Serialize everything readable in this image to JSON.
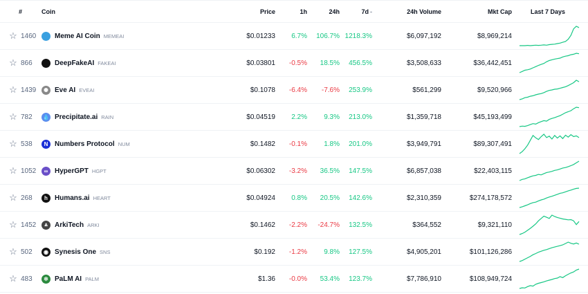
{
  "columns": {
    "rank": "#",
    "coin": "Coin",
    "price": "Price",
    "h1": "1h",
    "h24": "24h",
    "d7": "7d",
    "volume": "24h Volume",
    "mcap": "Mkt Cap",
    "last7": "Last 7 Days"
  },
  "colors": {
    "positive": "#16c784",
    "negative": "#ea3943",
    "star": "#616e85"
  },
  "rows": [
    {
      "star": "☆",
      "rank": "1460",
      "name": "Meme AI Coin",
      "symbol": "MEMEAI",
      "logo_char": "",
      "logo_color": "#3aa0e0",
      "price": "$0.01233",
      "h1": "6.7%",
      "h24": "106.7%",
      "d7": "1218.3%",
      "volume": "$6,097,192",
      "mcap": "$8,969,214",
      "trend": [
        2,
        2,
        2,
        2.1,
        2,
        2.1,
        2.2,
        2.1,
        2.2,
        2.3,
        2.2,
        2.4,
        2.5,
        2.6,
        2.8,
        3,
        3.3,
        3.6,
        4.5,
        6,
        8.5,
        9.5,
        9
      ]
    },
    {
      "star": "☆",
      "rank": "866",
      "name": "DeepFakeAI",
      "symbol": "FAKEAI",
      "logo_char": "",
      "logo_color": "#111111",
      "price": "$0.03801",
      "h1": "-0.5%",
      "h24": "18.5%",
      "d7": "456.5%",
      "volume": "$3,508,633",
      "mcap": "$36,442,451",
      "trend": [
        1,
        1.5,
        2,
        2.2,
        2.5,
        3,
        3.5,
        4,
        4.4,
        4.8,
        5.5,
        6,
        6.3,
        6.6,
        6.8,
        7,
        7.5,
        7.8,
        8,
        8.4,
        8.6,
        9,
        8.8
      ]
    },
    {
      "star": "☆",
      "rank": "1439",
      "name": "Eve AI",
      "symbol": "EVEAI",
      "logo_char": "✺",
      "logo_color": "#888888",
      "price": "$0.1078",
      "h1": "-6.4%",
      "h24": "-7.6%",
      "d7": "253.9%",
      "volume": "$561,299",
      "mcap": "$9,520,966",
      "trend": [
        1,
        1.3,
        1.8,
        2,
        2.4,
        2.6,
        3,
        3.3,
        3.5,
        3.9,
        4.4,
        4.8,
        5,
        5.3,
        5.4,
        5.7,
        6,
        6.3,
        6.8,
        7.4,
        8,
        9,
        8.4
      ]
    },
    {
      "star": "☆",
      "rank": "782",
      "name": "Precipitate.ai",
      "symbol": "RAIN",
      "logo_char": "💧",
      "logo_color": "#5b8def",
      "price": "$0.04519",
      "h1": "2.2%",
      "h24": "9.3%",
      "d7": "213.0%",
      "volume": "$1,359,718",
      "mcap": "$45,193,499",
      "trend": [
        1,
        1.2,
        1.1,
        1.4,
        1.8,
        2.2,
        2,
        2.6,
        3,
        3.4,
        3.2,
        3.9,
        4.3,
        4.6,
        5,
        5.4,
        6,
        6.6,
        7,
        7.4,
        8.2,
        8.8,
        8.6
      ]
    },
    {
      "star": "☆",
      "rank": "538",
      "name": "Numbers Protocol",
      "symbol": "NUM",
      "logo_char": "N",
      "logo_color": "#1a2fd6",
      "price": "$0.1482",
      "h1": "-0.1%",
      "h24": "1.8%",
      "d7": "201.0%",
      "volume": "$3,949,791",
      "mcap": "$89,307,491",
      "trend": [
        1,
        1.8,
        3,
        4.5,
        6.5,
        8.5,
        7.5,
        6.8,
        8,
        9,
        7.6,
        8.2,
        7,
        8.5,
        7.4,
        8.3,
        7.2,
        8.6,
        7.8,
        8.8,
        8,
        8.3,
        7.6
      ]
    },
    {
      "star": "☆",
      "rank": "1052",
      "name": "HyperGPT",
      "symbol": "HGPT",
      "logo_char": "∞",
      "logo_color": "#6a4fc8",
      "price": "$0.06302",
      "h1": "-3.2%",
      "h24": "36.5%",
      "d7": "147.5%",
      "volume": "$6,857,038",
      "mcap": "$22,403,115",
      "trend": [
        1,
        1.5,
        1.7,
        2.2,
        2.6,
        3,
        3.2,
        3.6,
        3.4,
        3.9,
        4.4,
        4.6,
        4.9,
        5.3,
        5.5,
        5.9,
        6.3,
        6.5,
        6.9,
        7.3,
        7.8,
        8.5,
        9.2
      ]
    },
    {
      "star": "☆",
      "rank": "268",
      "name": "Humans.ai",
      "symbol": "HEART",
      "logo_char": "h",
      "logo_color": "#111111",
      "price": "$0.04924",
      "h1": "0.8%",
      "h24": "20.5%",
      "d7": "142.6%",
      "volume": "$2,310,359",
      "mcap": "$274,178,572",
      "trend": [
        1,
        1.3,
        1.7,
        2.1,
        2.6,
        3,
        3.2,
        3.7,
        4.1,
        4.4,
        4.9,
        5.3,
        5.6,
        6,
        6.4,
        6.8,
        7,
        7.4,
        7.8,
        8.1,
        8.5,
        8.8,
        8.9
      ]
    },
    {
      "star": "☆",
      "rank": "1452",
      "name": "ArkiTech",
      "symbol": "ARKI",
      "logo_char": "⩓",
      "logo_color": "#444444",
      "price": "$0.1462",
      "h1": "-2.2%",
      "h24": "-24.7%",
      "d7": "132.5%",
      "volume": "$364,552",
      "mcap": "$9,321,110",
      "trend": [
        1,
        1.4,
        2,
        2.8,
        3.6,
        4.5,
        5.5,
        6.8,
        7.8,
        8.8,
        8.3,
        7.8,
        9.2,
        8.6,
        8.2,
        7.9,
        7.6,
        7.4,
        7.2,
        7.3,
        6.8,
        5.2,
        6.5
      ]
    },
    {
      "star": "☆",
      "rank": "502",
      "name": "Synesis One",
      "symbol": "SNS",
      "logo_char": "◉",
      "logo_color": "#111111",
      "price": "$0.192",
      "h1": "-1.2%",
      "h24": "9.8%",
      "d7": "127.5%",
      "volume": "$4,905,201",
      "mcap": "$101,126,286",
      "trend": [
        1,
        1.4,
        2,
        2.6,
        3.2,
        3.9,
        4.4,
        5,
        5.4,
        5.8,
        6.1,
        6.5,
        6.9,
        7.2,
        7.5,
        7.8,
        8.1,
        8.7,
        9.3,
        8.8,
        8.5,
        8.9,
        8.4
      ]
    },
    {
      "star": "☆",
      "rank": "483",
      "name": "PaLM AI",
      "symbol": "PALM",
      "logo_char": "✲",
      "logo_color": "#2b8a3e",
      "price": "$1.36",
      "h1": "-0.0%",
      "h24": "53.4%",
      "d7": "123.7%",
      "volume": "$7,786,910",
      "mcap": "$108,949,724",
      "trend": [
        1,
        1.3,
        1.2,
        1.8,
        2.2,
        2,
        2.8,
        3.2,
        3.5,
        3.8,
        4.2,
        4.5,
        4.8,
        5.2,
        5.4,
        6,
        5.6,
        6.4,
        7,
        7.6,
        8,
        8.8,
        9.2
      ]
    }
  ]
}
